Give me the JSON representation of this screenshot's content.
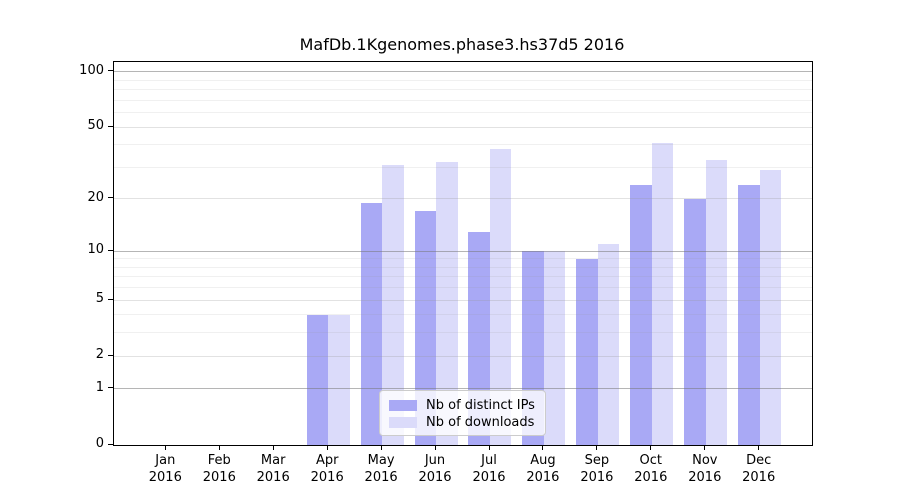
{
  "title": "MafDb.1Kgenomes.phase3.hs37d5 2016",
  "chart_data": {
    "type": "bar",
    "title": "MafDb.1Kgenomes.phase3.hs37d5 2016",
    "scale": "log1p",
    "grid": true,
    "legend_position": "inside-bottom-center",
    "categories": [
      "Jan",
      "Feb",
      "Mar",
      "Apr",
      "May",
      "Jun",
      "Jul",
      "Aug",
      "Sep",
      "Oct",
      "Nov",
      "Dec"
    ],
    "year_label": "2016",
    "series": [
      {
        "name": "Nb of distinct IPs",
        "color": "#a9a9f5",
        "values": [
          0,
          0,
          0,
          4,
          19,
          17,
          13,
          10,
          9,
          24,
          20,
          24
        ]
      },
      {
        "name": "Nb of downloads",
        "color": "#dbdbfa",
        "values": [
          0,
          0,
          0,
          4,
          31,
          32,
          38,
          10,
          11,
          41,
          33,
          29
        ]
      }
    ],
    "xlabel": "",
    "ylabel": "",
    "ylim": [
      0,
      113
    ],
    "yticks": [
      0,
      1,
      2,
      5,
      10,
      20,
      50,
      100
    ],
    "minor_gridlines": [
      3,
      4,
      6,
      7,
      8,
      9,
      30,
      40,
      60,
      70,
      80,
      90
    ],
    "emphasized_gridlines": [
      1,
      10,
      100
    ]
  },
  "colors": {
    "axis": "#000000",
    "background": "#ffffff",
    "legend_border": "#cccccc"
  }
}
